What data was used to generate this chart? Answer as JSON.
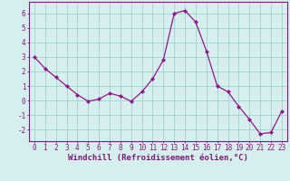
{
  "x": [
    0,
    1,
    2,
    3,
    4,
    5,
    6,
    7,
    8,
    9,
    10,
    11,
    12,
    13,
    14,
    15,
    16,
    17,
    18,
    19,
    20,
    21,
    22,
    23
  ],
  "y": [
    3.0,
    2.2,
    1.6,
    1.0,
    0.4,
    -0.05,
    0.1,
    0.5,
    0.3,
    -0.05,
    0.6,
    1.5,
    2.8,
    6.0,
    6.2,
    5.4,
    3.4,
    1.0,
    0.6,
    -0.4,
    -1.3,
    -2.3,
    -2.2,
    -0.75
  ],
  "line_color": "#8b1a8b",
  "marker": "D",
  "marker_size": 2.0,
  "background_color": "#d6eeee",
  "grid_color": "#aad4d4",
  "xlabel": "Windchill (Refroidissement éolien,°C)",
  "xlim": [
    -0.5,
    23.5
  ],
  "ylim": [
    -2.8,
    6.8
  ],
  "yticks": [
    -2,
    -1,
    0,
    1,
    2,
    3,
    4,
    5,
    6
  ],
  "xticks": [
    0,
    1,
    2,
    3,
    4,
    5,
    6,
    7,
    8,
    9,
    10,
    11,
    12,
    13,
    14,
    15,
    16,
    17,
    18,
    19,
    20,
    21,
    22,
    23
  ],
  "tick_fontsize": 5.5,
  "xlabel_fontsize": 6.5,
  "axis_color": "#7a1a7a",
  "spine_color": "#7a1a7a",
  "linewidth": 0.9
}
